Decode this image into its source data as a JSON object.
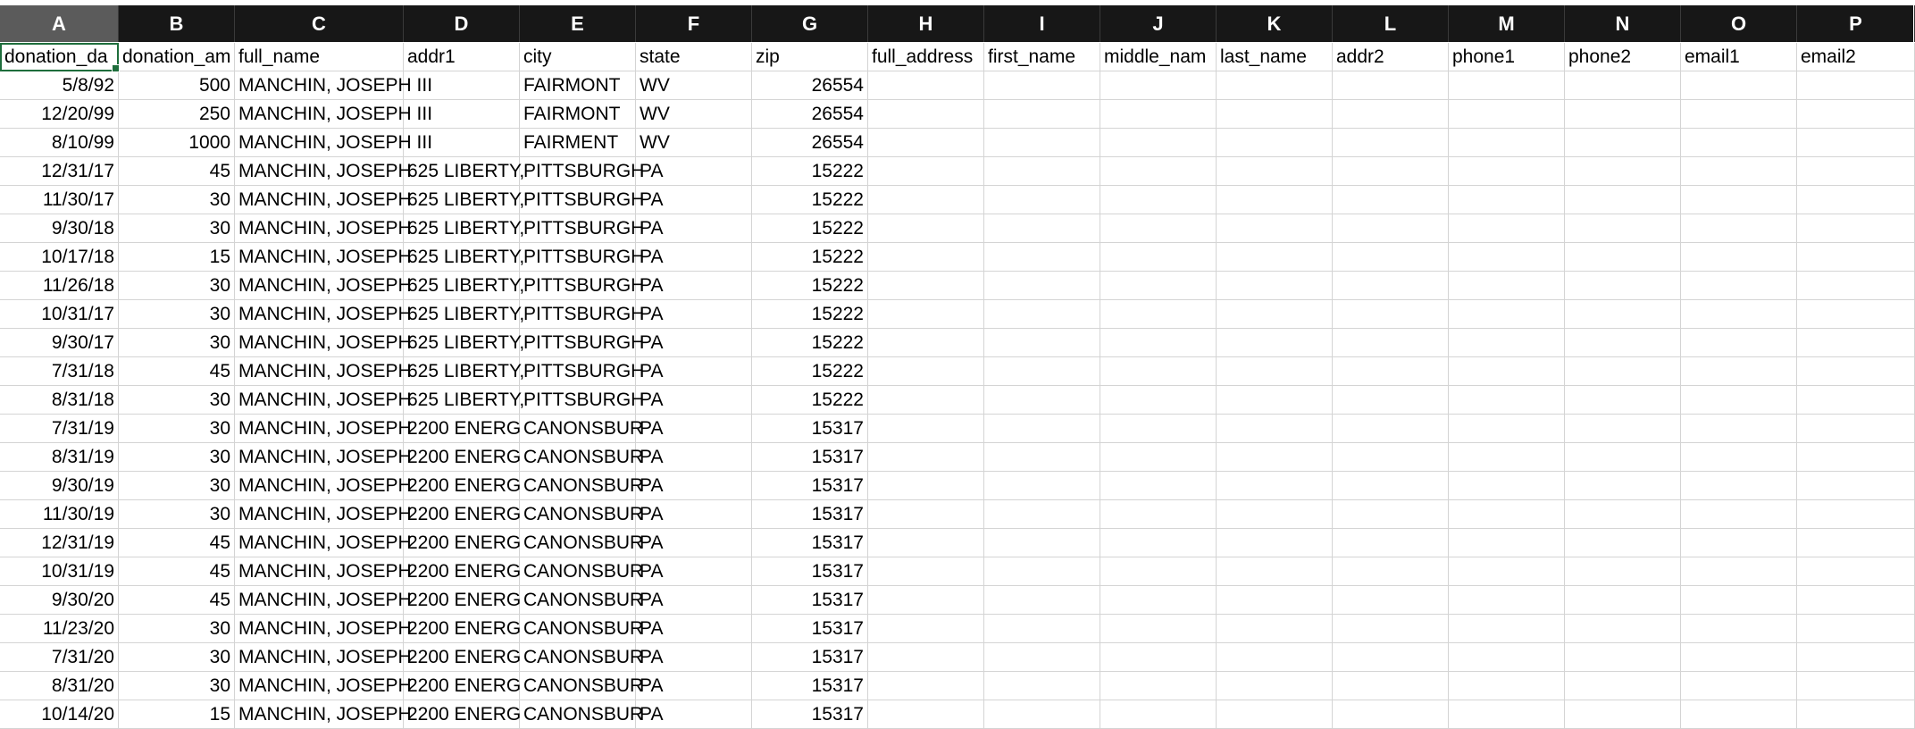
{
  "columns": [
    "A",
    "B",
    "C",
    "D",
    "E",
    "F",
    "G",
    "H",
    "I",
    "J",
    "K",
    "L",
    "M",
    "N",
    "O",
    "P"
  ],
  "active_column": "A",
  "selected_cell": "A1",
  "header_row": [
    "donation_da",
    "donation_am",
    "full_name",
    "addr1",
    "city",
    "state",
    "zip",
    "full_address",
    "first_name",
    "middle_nam",
    "last_name",
    "addr2",
    "phone1",
    "phone2",
    "email1",
    "email2"
  ],
  "rows": [
    [
      "5/8/92",
      "500",
      "MANCHIN, JOSEPH III",
      "",
      "FAIRMONT",
      "WV",
      "26554"
    ],
    [
      "12/20/99",
      "250",
      "MANCHIN, JOSEPH III",
      "",
      "FAIRMONT",
      "WV",
      "26554"
    ],
    [
      "8/10/99",
      "1000",
      "MANCHIN, JOSEPH III",
      "",
      "FAIRMENT",
      "WV",
      "26554"
    ],
    [
      "12/31/17",
      "45",
      "MANCHIN, JOSEPH",
      "625 LIBERTY,",
      "PITTSBURGH",
      "PA",
      "15222"
    ],
    [
      "11/30/17",
      "30",
      "MANCHIN, JOSEPH",
      "625 LIBERTY,",
      "PITTSBURGH",
      "PA",
      "15222"
    ],
    [
      "9/30/18",
      "30",
      "MANCHIN, JOSEPH",
      "625 LIBERTY,",
      "PITTSBURGH",
      "PA",
      "15222"
    ],
    [
      "10/17/18",
      "15",
      "MANCHIN, JOSEPH",
      "625 LIBERTY,",
      "PITTSBURGH",
      "PA",
      "15222"
    ],
    [
      "11/26/18",
      "30",
      "MANCHIN, JOSEPH",
      "625 LIBERTY,",
      "PITTSBURGH",
      "PA",
      "15222"
    ],
    [
      "10/31/17",
      "30",
      "MANCHIN, JOSEPH",
      "625 LIBERTY,",
      "PITTSBURGH",
      "PA",
      "15222"
    ],
    [
      "9/30/17",
      "30",
      "MANCHIN, JOSEPH",
      "625 LIBERTY,",
      "PITTSBURGH",
      "PA",
      "15222"
    ],
    [
      "7/31/18",
      "45",
      "MANCHIN, JOSEPH",
      "625 LIBERTY,",
      "PITTSBURGH",
      "PA",
      "15222"
    ],
    [
      "8/31/18",
      "30",
      "MANCHIN, JOSEPH",
      "625 LIBERTY,",
      "PITTSBURGH",
      "PA",
      "15222"
    ],
    [
      "7/31/19",
      "30",
      "MANCHIN, JOSEPH",
      "2200 ENERG",
      "CANONSBUR",
      "PA",
      "15317"
    ],
    [
      "8/31/19",
      "30",
      "MANCHIN, JOSEPH",
      "2200 ENERG",
      "CANONSBUR",
      "PA",
      "15317"
    ],
    [
      "9/30/19",
      "30",
      "MANCHIN, JOSEPH",
      "2200 ENERG",
      "CANONSBUR",
      "PA",
      "15317"
    ],
    [
      "11/30/19",
      "30",
      "MANCHIN, JOSEPH",
      "2200 ENERG",
      "CANONSBUR",
      "PA",
      "15317"
    ],
    [
      "12/31/19",
      "45",
      "MANCHIN, JOSEPH",
      "2200 ENERG",
      "CANONSBUR",
      "PA",
      "15317"
    ],
    [
      "10/31/19",
      "45",
      "MANCHIN, JOSEPH",
      "2200 ENERG",
      "CANONSBUR",
      "PA",
      "15317"
    ],
    [
      "9/30/20",
      "45",
      "MANCHIN, JOSEPH",
      "2200 ENERG",
      "CANONSBUR",
      "PA",
      "15317"
    ],
    [
      "11/23/20",
      "30",
      "MANCHIN, JOSEPH",
      "2200 ENERG",
      "CANONSBUR",
      "PA",
      "15317"
    ],
    [
      "7/31/20",
      "30",
      "MANCHIN, JOSEPH",
      "2200 ENERG",
      "CANONSBUR",
      "PA",
      "15317"
    ],
    [
      "8/31/20",
      "30",
      "MANCHIN, JOSEPH",
      "2200 ENERG",
      "CANONSBUR",
      "PA",
      "15317"
    ],
    [
      "10/14/20",
      "15",
      "MANCHIN, JOSEPH",
      "2200 ENERG",
      "CANONSBUR",
      "PA",
      "15317"
    ]
  ],
  "colors": {
    "header_bg": "#171717",
    "header_active_bg": "#5b5b5b",
    "header_text": "#ffffff",
    "grid_line": "#d4d4d4",
    "selection": "#1e6e3c"
  }
}
